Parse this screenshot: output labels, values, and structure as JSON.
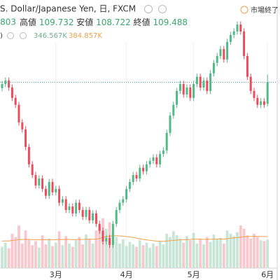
{
  "chart_data": {
    "type": "candlestick",
    "title": "S. Dollar/Japanese Yen, 日, FXCM",
    "status": "市場終了",
    "ohlc_labels": {
      "high": "高値",
      "low": "安値",
      "close": "終値"
    },
    "open": [
      109.3,
      109.43,
      109.54,
      109.32,
      108.99,
      108.77,
      108.21,
      107.99,
      107.43,
      106.88,
      106.54,
      106.21,
      106.43,
      106.1,
      105.88,
      106.32,
      105.99,
      106.1,
      105.66,
      105.77,
      105.43,
      105.54,
      105.32,
      105.66,
      105.43,
      105.21,
      105.43,
      105.1,
      105.32,
      104.99,
      104.77,
      104.43,
      104.54,
      104.32,
      104.99,
      105.43,
      105.66,
      105.77,
      106.1,
      106.32,
      106.54,
      106.43,
      106.77,
      106.66,
      106.88,
      106.99,
      107.1,
      106.88,
      107.21,
      107.32,
      107.88,
      108.43,
      108.77,
      109.21,
      109.43,
      109.1,
      109.32,
      108.99,
      109.43,
      109.66,
      109.32,
      109.54,
      109.21,
      109.77,
      110.1,
      110.32,
      110.54,
      110.21,
      110.77,
      110.99,
      111.1,
      111.32,
      111.1,
      110.32,
      109.66,
      109.21,
      108.99,
      108.77,
      108.88,
      108.803
    ],
    "high": [
      109.53,
      109.64,
      109.64,
      109.42,
      109.09,
      108.87,
      108.31,
      108.09,
      107.53,
      106.98,
      106.64,
      106.53,
      106.53,
      106.2,
      106.42,
      106.42,
      106.2,
      106.2,
      105.87,
      105.87,
      105.64,
      105.64,
      105.76,
      105.76,
      105.53,
      105.53,
      105.53,
      105.42,
      105.42,
      105.09,
      104.87,
      104.64,
      104.64,
      105.09,
      105.53,
      105.76,
      105.87,
      106.2,
      106.42,
      106.64,
      106.64,
      106.87,
      106.87,
      106.98,
      107.09,
      107.2,
      107.2,
      107.31,
      107.42,
      107.98,
      108.53,
      108.87,
      109.31,
      109.53,
      109.53,
      109.42,
      109.42,
      109.53,
      109.76,
      109.76,
      109.64,
      109.64,
      109.87,
      110.2,
      110.42,
      110.64,
      110.64,
      110.87,
      111.09,
      111.2,
      111.42,
      111.42,
      111.2,
      110.42,
      109.76,
      109.31,
      109.09,
      108.98,
      108.98,
      109.732
    ],
    "low": [
      109.2,
      109.33,
      109.22,
      108.89,
      108.67,
      108.11,
      107.89,
      107.33,
      106.78,
      106.44,
      106.11,
      106.11,
      106.0,
      105.78,
      105.78,
      105.89,
      105.89,
      105.56,
      105.56,
      105.33,
      105.33,
      105.22,
      105.22,
      105.33,
      105.11,
      105.11,
      105.0,
      105.0,
      104.89,
      104.67,
      104.33,
      104.33,
      104.22,
      104.22,
      104.89,
      105.33,
      105.56,
      105.67,
      106.0,
      106.22,
      106.33,
      106.33,
      106.56,
      106.56,
      106.78,
      106.89,
      106.78,
      106.78,
      107.11,
      107.22,
      107.78,
      108.33,
      108.67,
      109.11,
      109.0,
      109.0,
      108.89,
      108.89,
      109.33,
      109.22,
      109.22,
      109.11,
      109.11,
      109.67,
      110.0,
      110.22,
      110.11,
      110.11,
      110.67,
      110.89,
      111.0,
      111.0,
      110.22,
      109.56,
      109.11,
      108.89,
      108.67,
      108.67,
      108.67,
      108.722
    ],
    "close": [
      109.43,
      109.54,
      109.32,
      108.99,
      108.77,
      108.21,
      107.99,
      107.43,
      106.88,
      106.54,
      106.21,
      106.43,
      106.1,
      105.88,
      106.32,
      105.99,
      106.1,
      105.66,
      105.77,
      105.43,
      105.54,
      105.32,
      105.66,
      105.43,
      105.21,
      105.43,
      105.1,
      105.32,
      104.99,
      104.77,
      104.43,
      104.54,
      104.32,
      104.99,
      105.43,
      105.66,
      105.77,
      106.1,
      106.32,
      106.54,
      106.43,
      106.77,
      106.66,
      106.88,
      106.99,
      107.1,
      106.88,
      107.21,
      107.32,
      107.88,
      108.43,
      108.77,
      109.21,
      109.43,
      109.1,
      109.32,
      108.99,
      109.43,
      109.66,
      109.32,
      109.54,
      109.21,
      109.77,
      110.1,
      110.32,
      110.54,
      110.21,
      110.77,
      110.99,
      111.1,
      111.32,
      111.1,
      110.32,
      109.66,
      109.21,
      108.99,
      108.77,
      108.88,
      108.77,
      109.488
    ],
    "ylim": [
      103.65,
      112.1
    ],
    "up_color": "#53b987",
    "down_color": "#eb4d5c",
    "last_line_color": "#4ba3a3",
    "volume": {
      "values": [
        260,
        310,
        240,
        420,
        380,
        520,
        300,
        460,
        350,
        280,
        330,
        250,
        400,
        290,
        360,
        270,
        310,
        450,
        280,
        390,
        300,
        260,
        340,
        380,
        290,
        410,
        350,
        300,
        460,
        520,
        610,
        480,
        560,
        430,
        380,
        300,
        350,
        270,
        320,
        290,
        260,
        340,
        280,
        310,
        250,
        300,
        270,
        330,
        290,
        420,
        380,
        450,
        400,
        360,
        310,
        390,
        340,
        430,
        300,
        350,
        290,
        380,
        320,
        410,
        350,
        370,
        300,
        460,
        420,
        390,
        440,
        520,
        480,
        400,
        360,
        420,
        380,
        340,
        330,
        346.567
      ],
      "ylim": [
        0,
        3272
      ],
      "up_color": "#b9e0cc",
      "down_color": "#f5bcc2",
      "ma": {
        "values": [
          330,
          332,
          331,
          338,
          342,
          350,
          348,
          352,
          350,
          348,
          347,
          345,
          348,
          346,
          349,
          347,
          346,
          350,
          348,
          351,
          349,
          347,
          348,
          350,
          349,
          352,
          353,
          351,
          355,
          362,
          375,
          382,
          390,
          393,
          395,
          392,
          390,
          385,
          380,
          375,
          365,
          358,
          350,
          345,
          338,
          334,
          330,
          328,
          326,
          330,
          334,
          338,
          342,
          345,
          346,
          348,
          350,
          354,
          352,
          353,
          350,
          352,
          351,
          354,
          355,
          356,
          354,
          360,
          365,
          368,
          372,
          378,
          383,
          385,
          386,
          388,
          387,
          386,
          385,
          384.857
        ],
        "color": "#f0a04b"
      }
    },
    "volume_legend": {
      "label": ")",
      "value": "346.567K",
      "ma_value": "384.857K"
    },
    "x_labels": [
      {
        "index": 16,
        "label": "3月"
      },
      {
        "index": 37,
        "label": "4月"
      },
      {
        "index": 57,
        "label": "5月"
      },
      {
        "index": 79,
        "label": "6月"
      }
    ]
  }
}
